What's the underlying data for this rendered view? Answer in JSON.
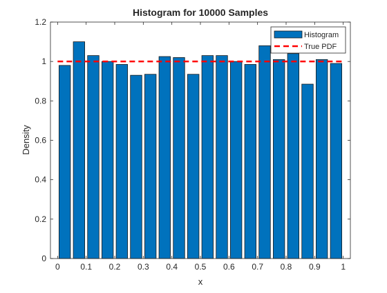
{
  "chart_data": {
    "type": "bar",
    "title": "Histogram for 10000 Samples",
    "xlabel": "x",
    "ylabel": "Density",
    "xlim": [
      -0.025,
      1.025
    ],
    "ylim": [
      0,
      1.2
    ],
    "xticks": [
      0,
      0.1,
      0.2,
      0.3,
      0.4,
      0.5,
      0.6,
      0.7,
      0.8,
      0.9,
      1
    ],
    "xtick_labels": [
      "0",
      "0.1",
      "0.2",
      "0.3",
      "0.4",
      "0.5",
      "0.6",
      "0.7",
      "0.8",
      "0.9",
      "1"
    ],
    "yticks": [
      0,
      0.2,
      0.4,
      0.6,
      0.8,
      1,
      1.2
    ],
    "ytick_labels": [
      "0",
      "0.2",
      "0.4",
      "0.6",
      "0.8",
      "1",
      "1.2"
    ],
    "grid": false,
    "legend": "top-right",
    "bin_centers": [
      0.025,
      0.075,
      0.125,
      0.175,
      0.225,
      0.275,
      0.325,
      0.375,
      0.425,
      0.475,
      0.525,
      0.575,
      0.625,
      0.675,
      0.725,
      0.775,
      0.825,
      0.875,
      0.925,
      0.975
    ],
    "bin_width": 0.05,
    "series": [
      {
        "name": "Histogram",
        "kind": "bar",
        "color": "#0072BD",
        "values": [
          0.98,
          1.1,
          1.03,
          1.0,
          0.985,
          0.93,
          0.935,
          1.025,
          1.02,
          0.935,
          1.03,
          1.03,
          1.0,
          0.985,
          1.08,
          1.01,
          1.04,
          0.885,
          1.01,
          0.99
        ]
      },
      {
        "name": "True PDF",
        "kind": "line",
        "color": "#FF0000",
        "style": "dashed",
        "x": [
          0,
          1
        ],
        "y": [
          1,
          1
        ]
      }
    ]
  }
}
